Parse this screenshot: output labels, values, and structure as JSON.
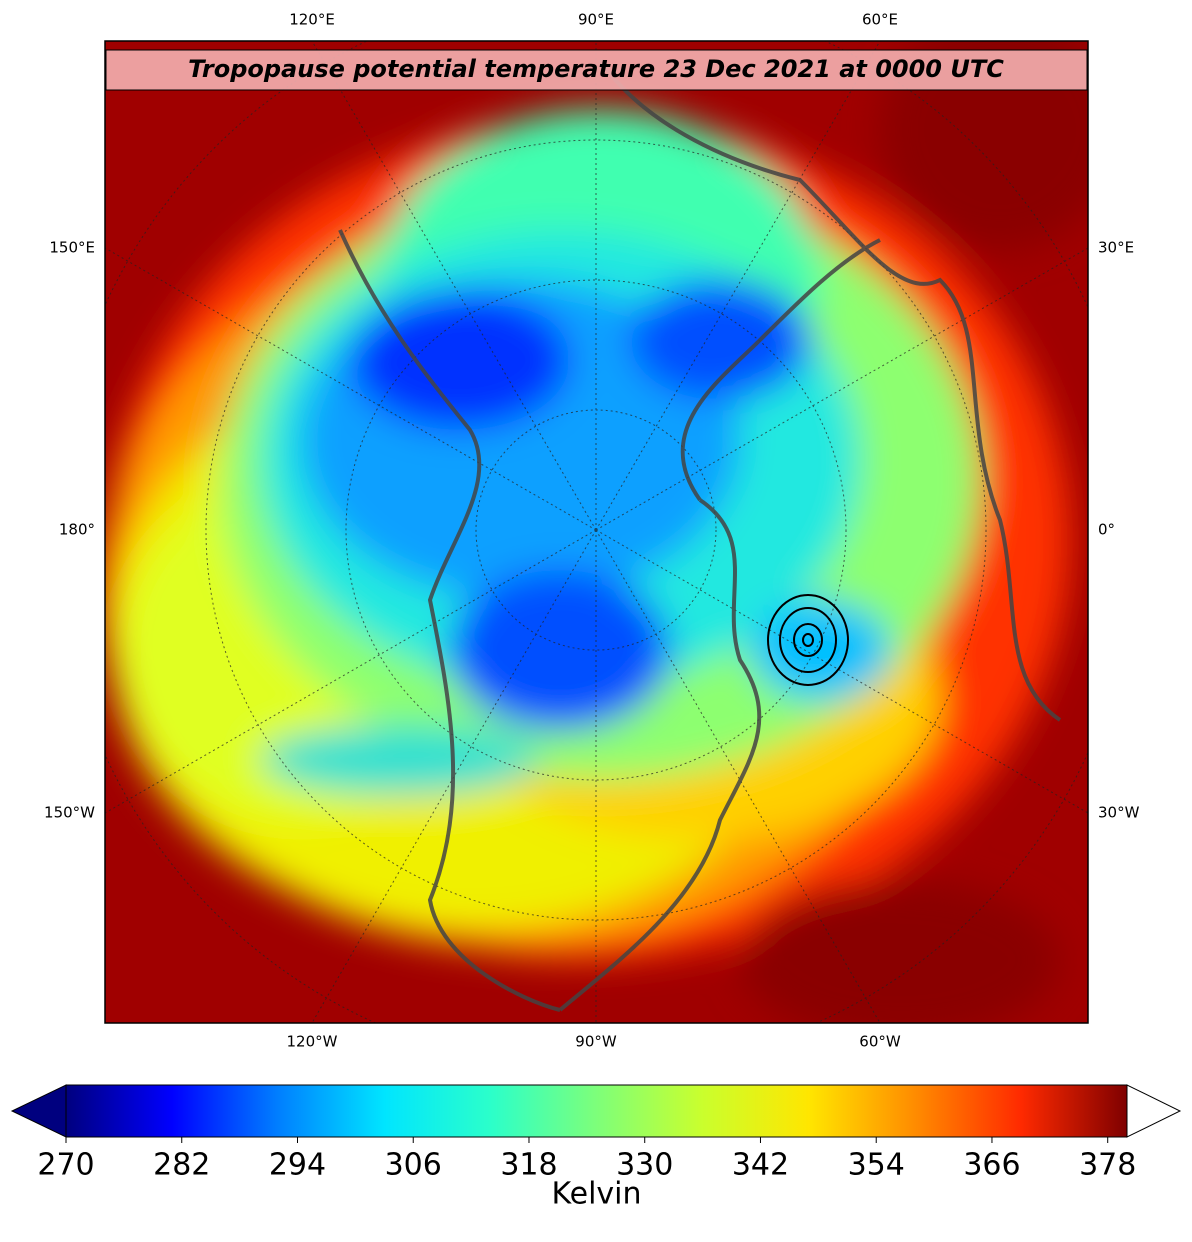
{
  "map": {
    "title": "Tropopause potential temperature 23 Dec 2021 at 0000 UTC",
    "top_labels": [
      "120°E",
      "90°E",
      "60°E"
    ],
    "bottom_labels": [
      "120°W",
      "90°W",
      "60°W"
    ],
    "left_labels": [
      "150°E",
      "180°",
      "150°W"
    ],
    "right_labels": [
      "30°E",
      "0°",
      "30°W"
    ]
  },
  "colorbar": {
    "label": "Kelvin",
    "range": [
      270,
      380
    ],
    "ticks": [
      270,
      282,
      294,
      306,
      318,
      330,
      342,
      354,
      366,
      378
    ],
    "colors": [
      "#00007f",
      "#0000ff",
      "#007fff",
      "#00e5ff",
      "#2bffca",
      "#7dff7a",
      "#caff2d",
      "#ffe600",
      "#ff8c00",
      "#ff2a00",
      "#7f0000"
    ],
    "extend_low_color": "#00007f",
    "extend_high_color": "#ffffff"
  }
}
